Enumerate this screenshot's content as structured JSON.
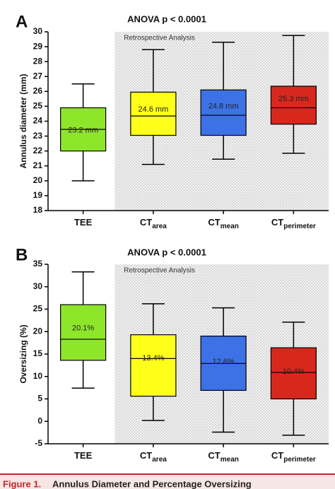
{
  "chart_data": [
    {
      "type": "box",
      "panel_label": "A",
      "title": "ANOVA p < 0.0001",
      "annotation": "Retrospective Analysis",
      "y_label": "Annulus diameter (mm)",
      "categories": [
        "TEE",
        "CT",
        "CT",
        "CT"
      ],
      "category_subscripts": [
        null,
        "area",
        "mean",
        "perimeter"
      ],
      "colors": [
        "#8ee62a",
        "#ffff1a",
        "#3d72e6",
        "#d8281e"
      ],
      "whisker_high": [
        26.5,
        28.8,
        29.3,
        29.75
      ],
      "q3": [
        24.9,
        25.95,
        26.1,
        26.35
      ],
      "median": [
        23.45,
        24.35,
        24.4,
        24.9
      ],
      "q1": [
        22.0,
        23.05,
        23.05,
        23.8
      ],
      "whisker_low": [
        20.0,
        21.1,
        21.45,
        21.85
      ],
      "means": [
        23.2,
        24.6,
        24.8,
        25.3
      ],
      "mean_labels": [
        "23.2 mm",
        "24.6 mm",
        "24.8 mm",
        "25.3 mm"
      ],
      "ylim": [
        18,
        30
      ],
      "yticks": [
        18,
        19,
        20,
        21,
        22,
        23,
        24,
        25,
        26,
        27,
        28,
        29,
        30
      ]
    },
    {
      "type": "box",
      "panel_label": "B",
      "title": "ANOVA p < 0.0001",
      "annotation": "Retrospective Analysis",
      "y_label": "Oversizing (%)",
      "categories": [
        "TEE",
        "CT",
        "CT",
        "CT"
      ],
      "category_subscripts": [
        null,
        "area",
        "mean",
        "perimeter"
      ],
      "colors": [
        "#8ee62a",
        "#ffff1a",
        "#3d72e6",
        "#d8281e"
      ],
      "whisker_high": [
        33.3,
        26.2,
        25.3,
        22.1
      ],
      "q3": [
        26.0,
        19.3,
        19.0,
        16.4
      ],
      "median": [
        18.3,
        14.0,
        12.9,
        10.9
      ],
      "q1": [
        13.6,
        5.6,
        6.9,
        5.0
      ],
      "whisker_low": [
        7.4,
        0.2,
        -2.4,
        -3.1
      ],
      "means": [
        20.1,
        13.4,
        12.6,
        10.4
      ],
      "mean_labels": [
        "20.1%",
        "13.4%",
        "12.6%",
        "10.4%"
      ],
      "ylim": [
        -5,
        35
      ],
      "yticks": [
        -5,
        0,
        5,
        10,
        15,
        20,
        25,
        30,
        35
      ]
    }
  ],
  "caption": {
    "figure_label": "Figure 1.",
    "text": "Annulus Diameter and Percentage Oversizing"
  }
}
